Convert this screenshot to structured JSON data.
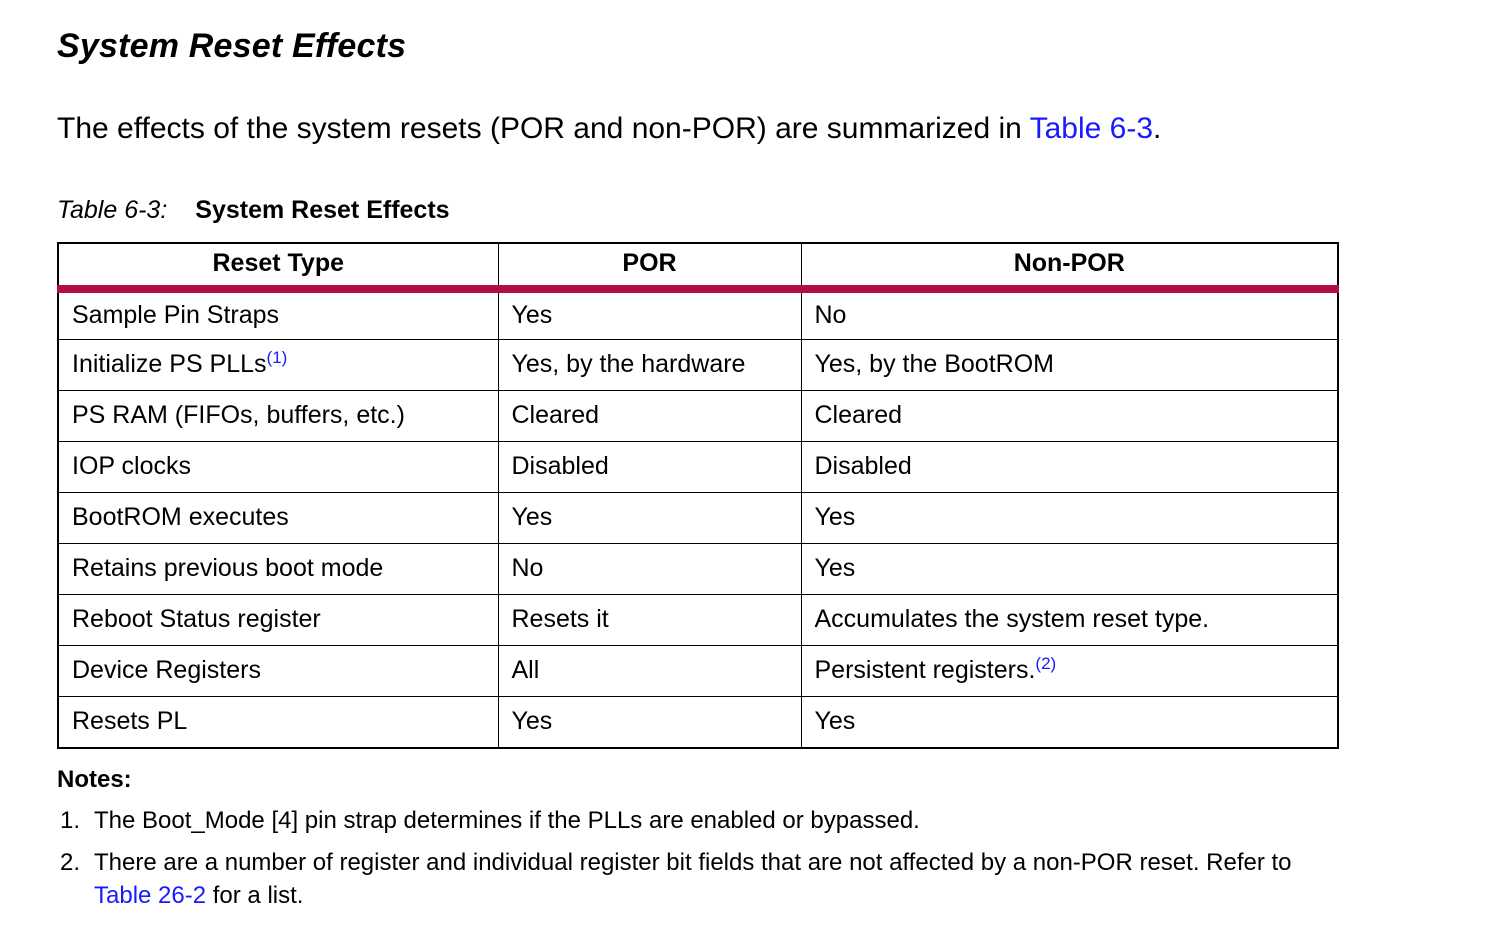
{
  "page": {
    "title": "System Reset Effects",
    "intro": {
      "text_before": "The effects of the system resets (POR and non-POR) are summarized in ",
      "link_label": "Table 6-3",
      "text_after": "."
    },
    "caption": {
      "label": "Table 6-3:",
      "title": "System Reset Effects"
    }
  },
  "table": {
    "headers": [
      "Reset Type",
      "POR",
      "Non-POR"
    ],
    "rows": [
      {
        "reset_type": "Sample Pin Straps",
        "por": "Yes",
        "non_por": "No"
      },
      {
        "reset_type": "Initialize PS PLLs",
        "reset_type_sup": "(1)",
        "por": "Yes, by the hardware",
        "non_por": "Yes, by the BootROM"
      },
      {
        "reset_type": "PS RAM (FIFOs, buffers, etc.)",
        "por": "Cleared",
        "non_por": "Cleared"
      },
      {
        "reset_type": "IOP clocks",
        "por": "Disabled",
        "non_por": "Disabled"
      },
      {
        "reset_type": "BootROM executes",
        "por": "Yes",
        "non_por": "Yes"
      },
      {
        "reset_type": "Retains previous boot mode",
        "por": "No",
        "non_por": "Yes"
      },
      {
        "reset_type": "Reboot Status register",
        "por": "Resets it",
        "non_por": "Accumulates the system reset type."
      },
      {
        "reset_type": "Device Registers",
        "por": "All",
        "non_por": "Persistent registers.",
        "non_por_sup": "(2)"
      },
      {
        "reset_type": "Resets PL",
        "por": "Yes",
        "non_por": "Yes"
      }
    ]
  },
  "notes": {
    "heading": "Notes:",
    "items": [
      {
        "number": "1.",
        "text": "The Boot_Mode [4] pin strap determines if the PLLs are enabled or bypassed."
      },
      {
        "number": "2.",
        "text_before": "There are a number of register and individual register bit fields that are not affected by a non-POR reset. Refer to ",
        "link_label": "Table 26-2",
        "text_after": " for a list."
      }
    ]
  },
  "colors": {
    "accent_red": "#B00F3F",
    "link_blue": "#1A1AFF"
  }
}
